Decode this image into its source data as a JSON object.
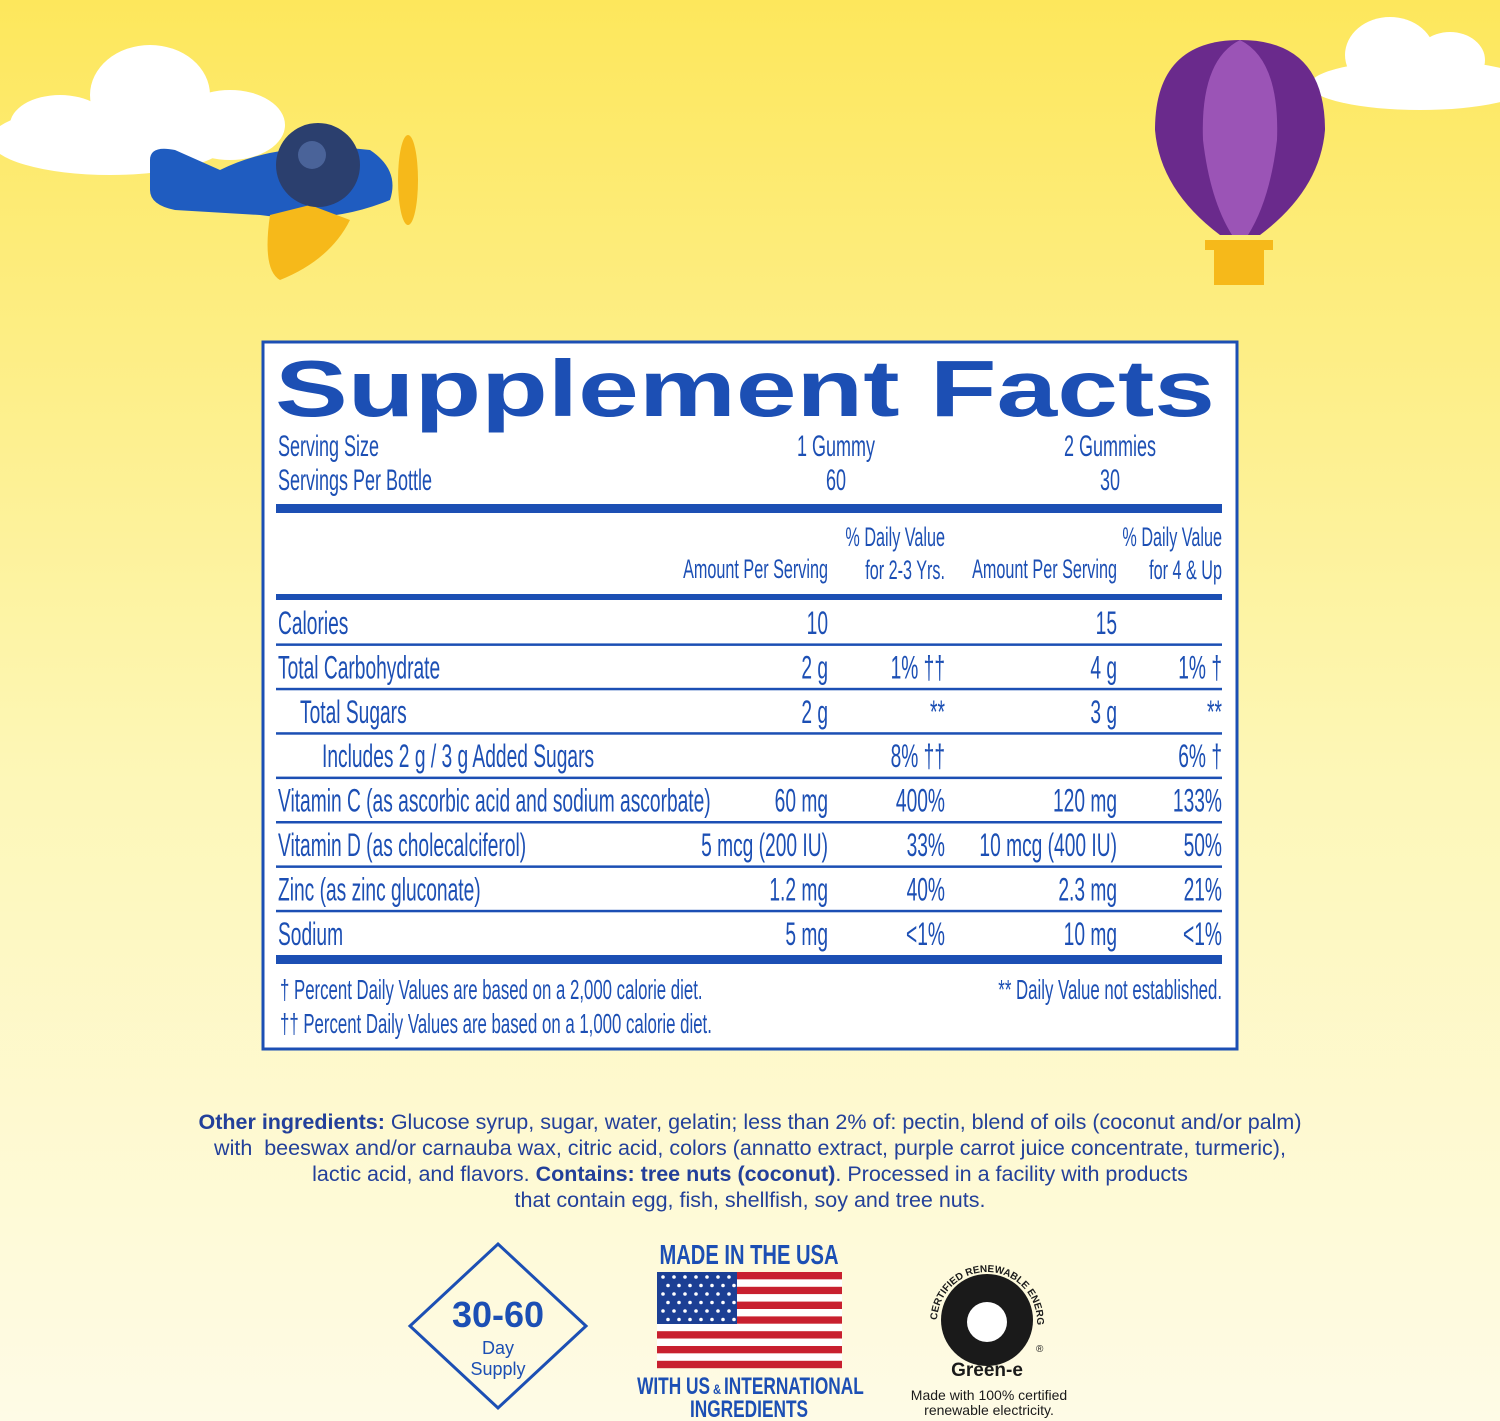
{
  "supplement_facts": {
    "title": "Supplement Facts",
    "serving_size": {
      "label": "Serving Size",
      "col_1": "1 Gummy",
      "col_2": "2 Gummies"
    },
    "servings_per_bottle": {
      "label": "Servings Per Bottle",
      "col_1": "60",
      "col_2": "30"
    },
    "headers": {
      "amount_1": "Amount Per Serving",
      "dv_1": [
        "% Daily Value",
        "for 2-3 Yrs."
      ],
      "amount_2": "Amount Per Serving",
      "dv_2": [
        "% Daily Value",
        "for 4 & Up"
      ]
    },
    "rows": [
      {
        "label": "Calories",
        "amount_1": "10",
        "amount_2": "15"
      },
      {
        "label": "Total Carbohydrate",
        "amount_1": "2 g",
        "dv_1": "1% ††",
        "amount_2": "4 g",
        "dv_2": "1% †"
      },
      {
        "label": "Total Sugars",
        "amount_1": "2 g",
        "dv_1": "**",
        "amount_2": "3 g",
        "dv_2": "**"
      },
      {
        "label": "Includes 2 g / 3 g Added Sugars",
        "dv_1": "8% ††",
        "dv_2": "6% †"
      },
      {
        "label": "Vitamin C (as ascorbic acid and sodium ascorbate)",
        "amount_1": "60 mg",
        "dv_1": "400%",
        "amount_2": "120 mg",
        "dv_2": "133%"
      },
      {
        "label": "Vitamin D (as cholecalciferol)",
        "amount_1": "5 mcg (200 IU)",
        "dv_1": "33%",
        "amount_2": "10 mcg (400 IU)",
        "dv_2": "50%"
      },
      {
        "label": "Zinc (as zinc gluconate)",
        "amount_1": "1.2 mg",
        "dv_1": "40%",
        "amount_2": "2.3 mg",
        "dv_2": "21%"
      },
      {
        "label": "Sodium",
        "amount_1": "5 mg",
        "dv_1": "<1%",
        "amount_2": "10 mg",
        "dv_2": "<1%"
      }
    ],
    "footnotes": {
      "left": [
        "† Percent Daily Values are based on a 2,000 calorie diet.",
        "†† Percent Daily Values are based on a 1,000 calorie diet."
      ],
      "right": "** Daily Value not established."
    }
  },
  "other_ingredients": {
    "lines": [
      [
        {
          "text": "Other ingredients:",
          "bold": true
        },
        {
          "text": " Glucose syrup, sugar, water, gelatin; less than 2% of: pectin, blend of oils (coconut and/or palm)",
          "bold": false
        }
      ],
      [
        {
          "text": "with  beeswax and/or carnauba wax, citric acid, colors (annatto extract, purple carrot juice concentrate, turmeric),",
          "bold": false
        }
      ],
      [
        {
          "text": "lactic acid, and flavors. ",
          "bold": false
        },
        {
          "text": "Contains: tree nuts (coconut)",
          "bold": true
        },
        {
          "text": ". Processed in a facility with products",
          "bold": false
        }
      ],
      [
        {
          "text": "that contain egg, fish, shellfish, soy and tree nuts.",
          "bold": false
        }
      ]
    ]
  },
  "badges": {
    "supply": {
      "range": "30-60",
      "line_1": "Day",
      "line_2": "Supply"
    },
    "usa": {
      "top": "MADE IN THE USA",
      "bottom_1": "WITH US",
      "ampersand": "&",
      "bottom_2": "INTERNATIONAL",
      "bottom_3": "INGREDIENTS"
    },
    "green_e": {
      "arc": "CERTIFIED RENEWABLE ENERGY",
      "name": "Green-e",
      "registered": "®",
      "caption": [
        "Made with 100% certified",
        "renewable electricity."
      ]
    }
  }
}
